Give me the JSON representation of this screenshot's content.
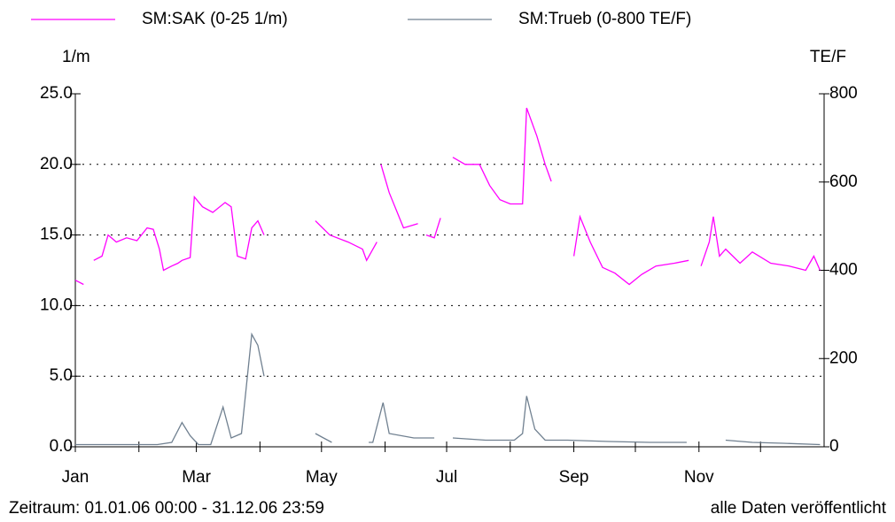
{
  "chart_data": {
    "type": "line",
    "y_label": "1/m",
    "y2_label": "TE/F",
    "footer_left": "Zeitraum: 01.01.06 00:00 - 31.12.06 23:59",
    "footer_right": "alle Daten veröffentlicht",
    "xlim": [
      0,
      365
    ],
    "xticks": [
      {
        "value": 0,
        "label": "Jan"
      },
      {
        "value": 31,
        "label": null
      },
      {
        "value": 59,
        "label": "Mar"
      },
      {
        "value": 90,
        "label": null
      },
      {
        "value": 120,
        "label": "May"
      },
      {
        "value": 151,
        "label": null
      },
      {
        "value": 181,
        "label": "Jul"
      },
      {
        "value": 212,
        "label": null
      },
      {
        "value": 243,
        "label": "Sep"
      },
      {
        "value": 273,
        "label": null
      },
      {
        "value": 304,
        "label": "Nov"
      },
      {
        "value": 334,
        "label": null
      }
    ],
    "ylim": [
      0,
      25
    ],
    "yticks": [
      {
        "value": 0,
        "label": "0.0"
      },
      {
        "value": 5,
        "label": "5.0"
      },
      {
        "value": 10,
        "label": "10.0"
      },
      {
        "value": 15,
        "label": "15.0"
      },
      {
        "value": 20,
        "label": "20.0"
      },
      {
        "value": 25,
        "label": "25.0"
      }
    ],
    "y2lim": [
      0,
      800
    ],
    "y2ticks": [
      0,
      200,
      400,
      600,
      800
    ],
    "grid": true,
    "series": [
      {
        "name": "SM:SAK (0-25 1/m)",
        "color": "#ff00ff",
        "x": [
          0,
          4,
          6,
          9,
          13,
          16,
          20,
          25,
          30,
          35,
          38,
          41,
          43,
          47,
          50,
          52,
          56,
          58,
          62,
          67,
          73,
          76,
          79,
          83,
          86,
          89,
          92,
          94,
          117,
          124,
          133,
          140,
          142,
          147,
          148,
          149,
          153,
          160,
          167,
          169,
          171,
          175,
          178,
          180,
          184,
          190,
          197,
          202,
          207,
          212,
          218,
          220,
          225,
          229,
          232,
          236,
          243,
          246,
          251,
          257,
          263,
          270,
          276,
          283,
          292,
          299,
          302,
          305,
          309,
          311,
          314,
          317,
          324,
          330,
          339,
          348,
          356,
          360,
          363
        ],
        "values": [
          11.8,
          11.5,
          null,
          13.2,
          13.5,
          15,
          14.5,
          14.8,
          14.6,
          15.5,
          15.4,
          14,
          12.5,
          12.8,
          13,
          13.2,
          13.4,
          17.7,
          17,
          16.6,
          17.3,
          17,
          13.5,
          13.3,
          15.5,
          16,
          15,
          null,
          16,
          15,
          14.5,
          14,
          13.2,
          14.5,
          null,
          20,
          18,
          15.5,
          15.8,
          null,
          15,
          14.8,
          16.2,
          null,
          20.5,
          20,
          20,
          18.5,
          17.5,
          17.2,
          17.2,
          24,
          22,
          20,
          18.8,
          null,
          13.5,
          16.3,
          14.5,
          12.7,
          12.3,
          11.5,
          12.2,
          12.8,
          13,
          13.2,
          null,
          12.8,
          14.5,
          16.3,
          13.5,
          14,
          13,
          13.8,
          13,
          12.8,
          12.5,
          13.5,
          12.5
        ]
      },
      {
        "name": "SM:Trueb (0-800 TE/F)",
        "color": "#708090",
        "axis": "y2",
        "x": [
          0,
          20,
          40,
          47,
          52,
          56,
          60,
          66,
          72,
          76,
          81,
          86,
          89,
          92,
          94,
          117,
          121,
          125,
          128,
          143,
          145,
          150,
          153,
          165,
          175,
          177,
          184,
          200,
          214,
          218,
          220,
          224,
          229,
          240,
          260,
          280,
          298,
          300,
          317,
          330,
          345,
          363
        ],
        "values": [
          5,
          5,
          5,
          10,
          55,
          25,
          5,
          5,
          90,
          20,
          30,
          255,
          230,
          160,
          null,
          30,
          20,
          10,
          null,
          10,
          10,
          100,
          30,
          20,
          20,
          null,
          20,
          15,
          15,
          30,
          115,
          40,
          15,
          15,
          12,
          10,
          10,
          null,
          15,
          10,
          8,
          5
        ]
      }
    ]
  }
}
